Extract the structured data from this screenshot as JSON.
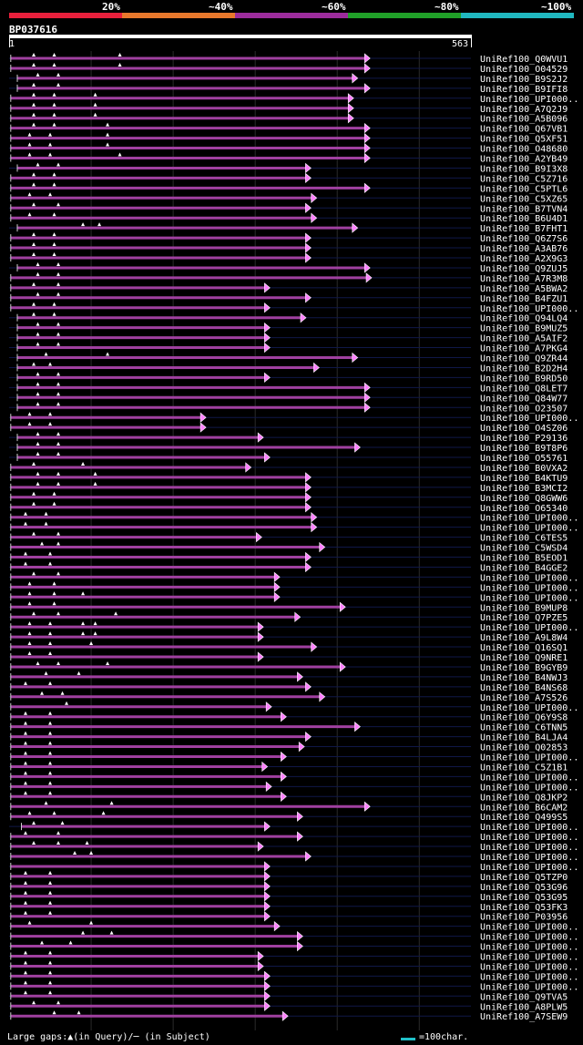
{
  "legend": {
    "labels": [
      "20%",
      "~40%",
      "~60%",
      "~80%",
      "~100%"
    ],
    "colors": [
      "#e8203c",
      "#e8782c",
      "#9c2c9c",
      "#20a028",
      "#20b8c0"
    ]
  },
  "query": {
    "name": "BP037616",
    "start": "1",
    "end": "563"
  },
  "footer": {
    "gaps": "Large gaps:▲(in Query)/─ (in Subject)",
    "scale": "=100char."
  },
  "chart_data": {
    "type": "alignment-map",
    "query_length": 563,
    "series_color": "#a040a0",
    "arrow_color": "#ff80ff",
    "hits": [
      {
        "label": "UniRef100_Q0WVU1",
        "s": 2,
        "e": 440,
        "m": [
          30,
          55,
          135
        ]
      },
      {
        "label": "UniRef100_O04529",
        "s": 2,
        "e": 440,
        "m": [
          30,
          55,
          135
        ]
      },
      {
        "label": "UniRef100_B9S2J2",
        "s": 10,
        "e": 425,
        "m": [
          35,
          60
        ]
      },
      {
        "label": "UniRef100_B9IFI8",
        "s": 10,
        "e": 440,
        "m": [
          30,
          60
        ]
      },
      {
        "label": "UniRef100_UPI000..",
        "s": 2,
        "e": 420,
        "m": [
          30,
          55,
          105
        ]
      },
      {
        "label": "UniRef100_A7Q2J9",
        "s": 2,
        "e": 420,
        "m": [
          30,
          55,
          105
        ]
      },
      {
        "label": "UniRef100_A5B096",
        "s": 2,
        "e": 420,
        "m": [
          30,
          55,
          105
        ]
      },
      {
        "label": "UniRef100_Q67VB1",
        "s": 2,
        "e": 440,
        "m": [
          30,
          55,
          120
        ]
      },
      {
        "label": "UniRef100_Q5XF51",
        "s": 2,
        "e": 440,
        "m": [
          25,
          50,
          120
        ]
      },
      {
        "label": "UniRef100_O48680",
        "s": 2,
        "e": 440,
        "m": [
          25,
          50,
          120
        ]
      },
      {
        "label": "UniRef100_A2YB49",
        "s": 2,
        "e": 440,
        "m": [
          25,
          50,
          135
        ]
      },
      {
        "label": "UniRef100_B9I3X8",
        "s": 10,
        "e": 368,
        "m": [
          35,
          60
        ]
      },
      {
        "label": "UniRef100_C5Z716",
        "s": 2,
        "e": 368,
        "m": [
          30,
          55
        ]
      },
      {
        "label": "UniRef100_C5PTL6",
        "s": 2,
        "e": 440,
        "m": [
          30,
          55
        ]
      },
      {
        "label": "UniRef100_C5XZ65",
        "s": 2,
        "e": 375,
        "m": [
          25,
          50
        ]
      },
      {
        "label": "UniRef100_B7TVN4",
        "s": 2,
        "e": 368,
        "m": [
          30,
          60
        ]
      },
      {
        "label": "UniRef100_B6U4D1",
        "s": 2,
        "e": 375,
        "m": [
          25,
          55
        ]
      },
      {
        "label": "UniRef100_B7FHT1",
        "s": 10,
        "e": 425,
        "m": [
          90,
          110
        ]
      },
      {
        "label": "UniRef100_Q6Z7S6",
        "s": 2,
        "e": 368,
        "m": [
          30,
          55
        ]
      },
      {
        "label": "UniRef100_A3AB76",
        "s": 2,
        "e": 368,
        "m": [
          30,
          55
        ]
      },
      {
        "label": "UniRef100_A2X9G3",
        "s": 2,
        "e": 368,
        "m": [
          30,
          55
        ]
      },
      {
        "label": "UniRef100_Q9ZUJ5",
        "s": 10,
        "e": 440,
        "m": [
          35,
          60
        ]
      },
      {
        "label": "UniRef100_A7R3M8",
        "s": 2,
        "e": 442,
        "m": [
          35,
          60
        ]
      },
      {
        "label": "UniRef100_A5BWA2",
        "s": 2,
        "e": 318,
        "m": [
          30,
          60
        ]
      },
      {
        "label": "UniRef100_B4FZU1",
        "s": 2,
        "e": 368,
        "m": [
          35,
          60
        ]
      },
      {
        "label": "UniRef100_UPI000..",
        "s": 2,
        "e": 318,
        "m": [
          30,
          55
        ]
      },
      {
        "label": "UniRef100_Q94LQ4",
        "s": 10,
        "e": 362,
        "m": [
          30,
          55
        ]
      },
      {
        "label": "UniRef100_B9MUZ5",
        "s": 10,
        "e": 318,
        "m": [
          35,
          60
        ]
      },
      {
        "label": "UniRef100_A5AIF2",
        "s": 10,
        "e": 318,
        "m": [
          35,
          60
        ]
      },
      {
        "label": "UniRef100_A7PKG4",
        "s": 10,
        "e": 318,
        "m": [
          35,
          60
        ]
      },
      {
        "label": "UniRef100_Q9ZR44",
        "s": 10,
        "e": 425,
        "m": [
          45,
          120
        ]
      },
      {
        "label": "UniRef100_B2D2H4",
        "s": 10,
        "e": 378,
        "m": [
          30,
          50
        ]
      },
      {
        "label": "UniRef100_B9RD50",
        "s": 10,
        "e": 318,
        "m": [
          35,
          60
        ]
      },
      {
        "label": "UniRef100_Q8LET7",
        "s": 10,
        "e": 440,
        "m": [
          35,
          60
        ]
      },
      {
        "label": "UniRef100_Q84W77",
        "s": 10,
        "e": 440,
        "m": [
          35,
          60
        ]
      },
      {
        "label": "UniRef100_O23507",
        "s": 10,
        "e": 440,
        "m": [
          35,
          60
        ]
      },
      {
        "label": "UniRef100_UPI000..",
        "s": 2,
        "e": 240,
        "m": [
          25,
          50
        ]
      },
      {
        "label": "UniRef100_O4SZ06",
        "s": 2,
        "e": 240,
        "m": [
          25,
          50
        ]
      },
      {
        "label": "UniRef100_P29136",
        "s": 10,
        "e": 310,
        "m": [
          35,
          60
        ]
      },
      {
        "label": "UniRef100_B9T8P6",
        "s": 10,
        "e": 428,
        "m": [
          35,
          60
        ]
      },
      {
        "label": "UniRef100_O55761",
        "s": 10,
        "e": 318,
        "m": [
          35,
          60
        ]
      },
      {
        "label": "UniRef100_B0VXA2",
        "s": 2,
        "e": 295,
        "m": [
          30,
          90
        ]
      },
      {
        "label": "UniRef100_B4KTU9",
        "s": 2,
        "e": 368,
        "m": [
          35,
          60,
          105
        ]
      },
      {
        "label": "UniRef100_B3MCI2",
        "s": 2,
        "e": 368,
        "m": [
          35,
          60,
          105
        ]
      },
      {
        "label": "UniRef100_Q8GWW6",
        "s": 2,
        "e": 368,
        "m": [
          30,
          55
        ]
      },
      {
        "label": "UniRef100_O65340",
        "s": 2,
        "e": 368,
        "m": [
          30,
          55
        ]
      },
      {
        "label": "UniRef100_UPI000..",
        "s": 2,
        "e": 375,
        "m": [
          20,
          45
        ]
      },
      {
        "label": "UniRef100_UPI000..",
        "s": 2,
        "e": 375,
        "m": [
          20,
          45
        ]
      },
      {
        "label": "UniRef100_C6TES5",
        "s": 2,
        "e": 308,
        "m": [
          30,
          60
        ]
      },
      {
        "label": "UniRef100_C5WSD4",
        "s": 2,
        "e": 385,
        "m": [
          40,
          60
        ]
      },
      {
        "label": "UniRef100_B5EOD1",
        "s": 2,
        "e": 368,
        "m": [
          20,
          50
        ]
      },
      {
        "label": "UniRef100_B4GGE2",
        "s": 2,
        "e": 368,
        "m": [
          20,
          50
        ]
      },
      {
        "label": "UniRef100_UPI000..",
        "s": 2,
        "e": 330,
        "m": [
          30,
          60
        ]
      },
      {
        "label": "UniRef100_UPI000..",
        "s": 2,
        "e": 330,
        "m": [
          25,
          55
        ]
      },
      {
        "label": "UniRef100_UPI000..",
        "s": 2,
        "e": 330,
        "m": [
          25,
          55,
          90
        ]
      },
      {
        "label": "UniRef100_B9MUP8",
        "s": 2,
        "e": 410,
        "m": [
          25,
          55
        ]
      },
      {
        "label": "UniRef100_Q7PZE5",
        "s": 2,
        "e": 355,
        "m": [
          30,
          60,
          130
        ]
      },
      {
        "label": "UniRef100_UPI000..",
        "s": 2,
        "e": 310,
        "m": [
          25,
          50,
          90,
          105
        ]
      },
      {
        "label": "UniRef100_A9L8W4",
        "s": 2,
        "e": 310,
        "m": [
          25,
          50,
          90,
          105
        ]
      },
      {
        "label": "UniRef100_Q16SQ1",
        "s": 2,
        "e": 375,
        "m": [
          25,
          50,
          100
        ]
      },
      {
        "label": "UniRef100_Q9NRE1",
        "s": 2,
        "e": 310,
        "m": [
          25,
          50
        ]
      },
      {
        "label": "UniRef100_B9GYB9",
        "s": 2,
        "e": 410,
        "m": [
          35,
          60,
          120
        ]
      },
      {
        "label": "UniRef100_B4NWJ3",
        "s": 2,
        "e": 358,
        "m": [
          45,
          85
        ]
      },
      {
        "label": "UniRef100_B4NS68",
        "s": 2,
        "e": 368,
        "m": [
          20,
          50
        ]
      },
      {
        "label": "UniRef100_A7S526",
        "s": 2,
        "e": 385,
        "m": [
          40,
          65
        ]
      },
      {
        "label": "UniRef100_UPI000..",
        "s": 2,
        "e": 320,
        "m": [
          70
        ]
      },
      {
        "label": "UniRef100_Q6Y9S8",
        "s": 2,
        "e": 338,
        "m": [
          20,
          50
        ]
      },
      {
        "label": "UniRef100_C6TNN5",
        "s": 2,
        "e": 428,
        "m": [
          20,
          50
        ]
      },
      {
        "label": "UniRef100_B4LJA4",
        "s": 2,
        "e": 368,
        "m": [
          20,
          50
        ]
      },
      {
        "label": "UniRef100_Q02853",
        "s": 2,
        "e": 360,
        "m": [
          20,
          50
        ]
      },
      {
        "label": "UniRef100_UPI000..",
        "s": 2,
        "e": 338,
        "m": [
          20,
          50
        ]
      },
      {
        "label": "UniRef100_C5Z1B1",
        "s": 2,
        "e": 315,
        "m": [
          20,
          50
        ]
      },
      {
        "label": "UniRef100_UPI000..",
        "s": 2,
        "e": 338,
        "m": [
          20,
          50
        ]
      },
      {
        "label": "UniRef100_UPI000..",
        "s": 2,
        "e": 320,
        "m": [
          20,
          50
        ]
      },
      {
        "label": "UniRef100_Q8JKP2",
        "s": 2,
        "e": 338,
        "m": [
          20,
          50
        ]
      },
      {
        "label": "UniRef100_B6CAM2",
        "s": 2,
        "e": 440,
        "m": [
          45,
          125
        ]
      },
      {
        "label": "UniRef100_Q499S5",
        "s": 2,
        "e": 358,
        "m": [
          25,
          55,
          115
        ]
      },
      {
        "label": "UniRef100_UPI000..",
        "s": 15,
        "e": 318,
        "m": [
          30,
          65
        ]
      },
      {
        "label": "UniRef100_UPI000..",
        "s": 2,
        "e": 358,
        "m": [
          20,
          60
        ]
      },
      {
        "label": "UniRef100_UPI000..",
        "s": 2,
        "e": 310,
        "m": [
          30,
          60,
          95
        ]
      },
      {
        "label": "UniRef100_UPI000..",
        "s": 2,
        "e": 368,
        "m": [
          80,
          100
        ]
      },
      {
        "label": "UniRef100_UPI000..",
        "s": 2,
        "e": 318,
        "m": []
      },
      {
        "label": "UniRef100_Q5TZP0",
        "s": 2,
        "e": 318,
        "m": [
          20,
          50
        ]
      },
      {
        "label": "UniRef100_Q53G96",
        "s": 2,
        "e": 318,
        "m": [
          20,
          50
        ]
      },
      {
        "label": "UniRef100_Q53G95",
        "s": 2,
        "e": 318,
        "m": [
          20,
          50
        ]
      },
      {
        "label": "UniRef100_Q53FK3",
        "s": 2,
        "e": 318,
        "m": [
          20,
          50
        ]
      },
      {
        "label": "UniRef100_P03956",
        "s": 2,
        "e": 318,
        "m": [
          20,
          50
        ]
      },
      {
        "label": "UniRef100_UPI000..",
        "s": 2,
        "e": 330,
        "m": [
          25,
          100
        ]
      },
      {
        "label": "UniRef100_UPI000..",
        "s": 2,
        "e": 358,
        "m": [
          90,
          125
        ]
      },
      {
        "label": "UniRef100_UPI000..",
        "s": 2,
        "e": 358,
        "m": [
          40,
          75
        ]
      },
      {
        "label": "UniRef100_UPI000..",
        "s": 2,
        "e": 310,
        "m": [
          20,
          50
        ]
      },
      {
        "label": "UniRef100_UPI000..",
        "s": 2,
        "e": 310,
        "m": [
          20,
          50
        ]
      },
      {
        "label": "UniRef100_UPI000..",
        "s": 2,
        "e": 318,
        "m": [
          20,
          50
        ]
      },
      {
        "label": "UniRef100_UPI000..",
        "s": 2,
        "e": 318,
        "m": [
          20,
          50
        ]
      },
      {
        "label": "UniRef100_Q9TVA5",
        "s": 2,
        "e": 318,
        "m": [
          20,
          50
        ]
      },
      {
        "label": "UniRef100_A8PLW5",
        "s": 2,
        "e": 318,
        "m": [
          30,
          60
        ]
      },
      {
        "label": "UniRef100_A7SEW9",
        "s": 2,
        "e": 340,
        "m": [
          55,
          85
        ]
      }
    ]
  }
}
